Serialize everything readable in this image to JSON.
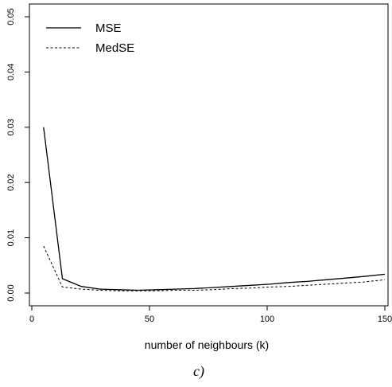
{
  "chart_data": {
    "type": "line",
    "title": "",
    "xlabel": "number of neighbours (k)",
    "ylabel": "",
    "xlim": [
      0,
      150
    ],
    "ylim": [
      0,
      0.05
    ],
    "x_ticks": [
      0,
      50,
      100,
      150
    ],
    "x_tick_labels": [
      "0",
      "50",
      "100",
      "150"
    ],
    "y_ticks": [
      0,
      0.01,
      0.02,
      0.03,
      0.04,
      0.05
    ],
    "y_tick_labels": [
      "0.00",
      "0.01",
      "0.02",
      "0.03",
      "0.04",
      "0.05"
    ],
    "grid": false,
    "legend_position": "top-left",
    "x": [
      5,
      13,
      21,
      29,
      37,
      45,
      53,
      61,
      69,
      77,
      85,
      93,
      101,
      109,
      117,
      125,
      133,
      141,
      150
    ],
    "series": [
      {
        "name": "MSE",
        "style": "solid",
        "values": [
          0.03,
          0.0026,
          0.0012,
          0.0007,
          0.0006,
          0.0005,
          0.0006,
          0.0007,
          0.0008,
          0.001,
          0.0012,
          0.0014,
          0.0016,
          0.0019,
          0.0021,
          0.0024,
          0.0027,
          0.003,
          0.0034
        ]
      },
      {
        "name": "MedSE",
        "style": "dashed",
        "values": [
          0.0085,
          0.0011,
          0.0007,
          0.0005,
          0.0004,
          0.0004,
          0.0004,
          0.0005,
          0.0005,
          0.0006,
          0.0008,
          0.0009,
          0.0011,
          0.0012,
          0.0014,
          0.0016,
          0.0018,
          0.002,
          0.0024
        ]
      }
    ],
    "caption": "c)"
  }
}
